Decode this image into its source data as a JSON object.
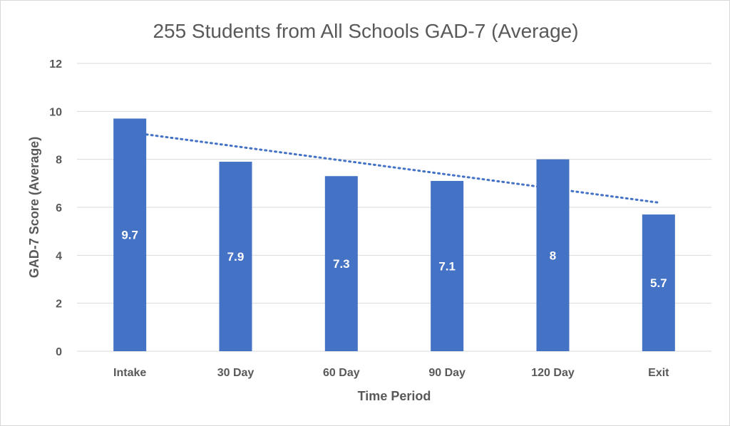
{
  "chart_data": {
    "type": "bar",
    "title": "255 Students from All Schools GAD-7 (Average)",
    "xlabel": "Time Period",
    "ylabel": "GAD-7 Score (Average)",
    "categories": [
      "Intake",
      "30 Day",
      "60 Day",
      "90 Day",
      "120 Day",
      "Exit"
    ],
    "values": [
      9.7,
      7.9,
      7.3,
      7.1,
      8,
      5.7
    ],
    "data_labels": [
      "9.7",
      "7.9",
      "7.3",
      "7.1",
      "8",
      "5.7"
    ],
    "ylim": [
      0,
      12
    ],
    "yticks": [
      "0",
      "2",
      "4",
      "6",
      "8",
      "10",
      "12"
    ],
    "trendline": {
      "type": "linear",
      "style": "dotted"
    },
    "grid": true,
    "legend": "none",
    "colors": {
      "bar": "#4472c4",
      "grid": "#d9d9d9",
      "text": "#595959"
    }
  }
}
